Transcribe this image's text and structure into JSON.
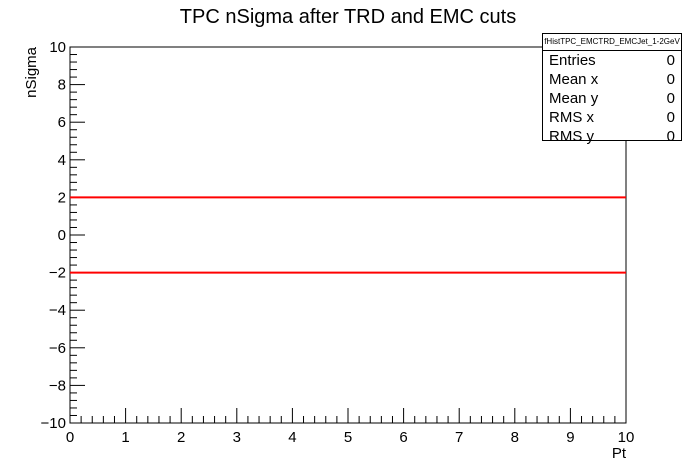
{
  "chart_data": {
    "type": "line",
    "title": "TPC nSigma after TRD and EMC cuts",
    "xlabel": "Pt",
    "ylabel": "nSigma",
    "xlim": [
      0,
      10
    ],
    "ylim": [
      -10,
      10
    ],
    "x_ticks": [
      0,
      1,
      2,
      3,
      4,
      5,
      6,
      7,
      8,
      9,
      10
    ],
    "y_ticks": [
      -10,
      -8,
      -6,
      -4,
      -2,
      0,
      2,
      4,
      6,
      8,
      10
    ],
    "x_tick_labels": [
      "0",
      "1",
      "2",
      "3",
      "4",
      "5",
      "6",
      "7",
      "8",
      "9",
      "10"
    ],
    "y_tick_labels": [
      "−10",
      "−8",
      "−6",
      "−4",
      "−2",
      "0",
      "2",
      "4",
      "6",
      "8",
      "10"
    ],
    "grid": false,
    "series": [
      {
        "x": [
          0,
          10
        ],
        "y": [
          2,
          2
        ],
        "color": "#ff0000"
      },
      {
        "x": [
          0,
          10
        ],
        "y": [
          -2,
          -2
        ],
        "color": "#ff0000"
      }
    ]
  },
  "stats_box": {
    "name": "fHistTPC_EMCTRD_EMCJet_1-2GeV",
    "rows": [
      {
        "label": "Entries",
        "value": "0"
      },
      {
        "label": "Mean x",
        "value": "0"
      },
      {
        "label": "Mean y",
        "value": "0"
      },
      {
        "label": "RMS x",
        "value": "0"
      },
      {
        "label": "RMS y",
        "value": "0"
      }
    ]
  }
}
